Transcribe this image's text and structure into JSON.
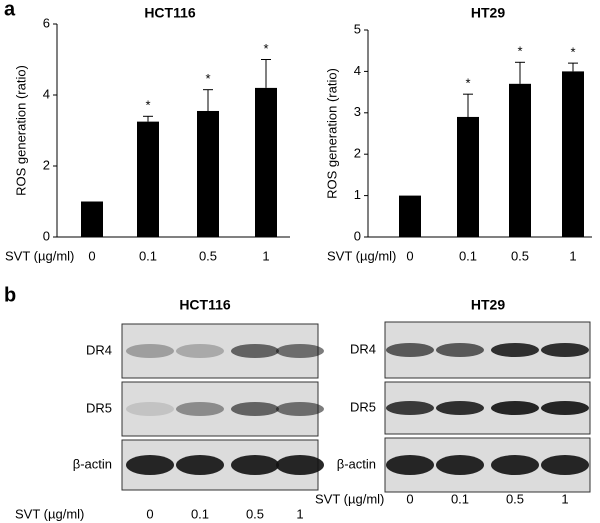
{
  "panel_a_label": "a",
  "panel_b_label": "b",
  "chart_data": [
    {
      "type": "bar",
      "title": "HCT116",
      "y_label": "ROS generation (ratio)",
      "x_label": "SVT (µg/ml)",
      "categories": [
        "0",
        "0.1",
        "0.5",
        "1"
      ],
      "values": [
        1,
        3.25,
        3.55,
        4.2
      ],
      "errors": [
        0,
        0.15,
        0.6,
        0.8
      ],
      "significance": [
        null,
        "*",
        "*",
        "*"
      ],
      "color": "#000000",
      "ylim": [
        0,
        6
      ],
      "yticks": [
        0,
        2,
        4,
        6
      ]
    },
    {
      "type": "bar",
      "title": "HT29",
      "y_label": "ROS generation (ratio)",
      "x_label": "SVT (µg/ml)",
      "categories": [
        "0",
        "0.1",
        "0.5",
        "1"
      ],
      "values": [
        1,
        2.9,
        3.7,
        4.0
      ],
      "errors": [
        0,
        0.55,
        0.52,
        0.2
      ],
      "significance": [
        null,
        "*",
        "*",
        "*"
      ],
      "color": "#000000",
      "ylim": [
        0,
        5
      ],
      "yticks": [
        0,
        1,
        2,
        3,
        4,
        5
      ]
    }
  ],
  "blots": [
    {
      "title": "HCT116",
      "rows": [
        "DR4",
        "DR5",
        "β-actin"
      ],
      "x_label": "SVT (µg/ml)",
      "lanes": [
        "0",
        "0.1",
        "0.5",
        "1"
      ]
    },
    {
      "title": "HT29",
      "rows": [
        "DR4",
        "DR5",
        "β-actin"
      ],
      "x_label": "SVT (µg/ml)",
      "lanes": [
        "0",
        "0.1",
        "0.5",
        "1"
      ]
    }
  ]
}
